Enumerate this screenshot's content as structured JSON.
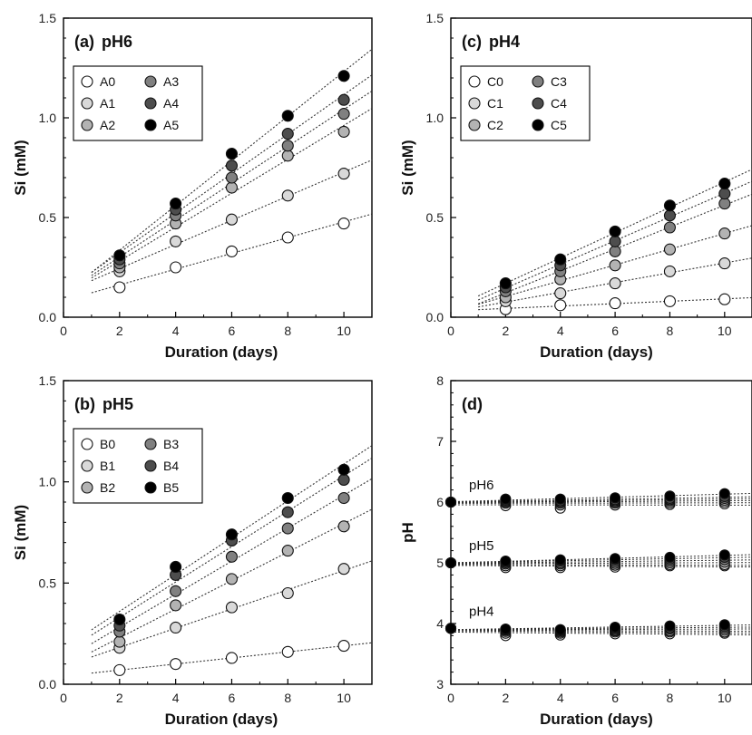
{
  "chart_data": [
    {
      "type": "scatter",
      "panel": "a",
      "title_prefix": "(a)",
      "title": "pH6",
      "xlabel": "Duration (days)",
      "ylabel": "Si (mM)",
      "xlim": [
        0,
        11
      ],
      "ylim": [
        0,
        1.5
      ],
      "x_ticks": [
        "0",
        "2",
        "4",
        "6",
        "8",
        "10"
      ],
      "y_ticks": [
        "0.0",
        "0.5",
        "1.0",
        "1.5"
      ],
      "legend_position": "top-left",
      "x": [
        2,
        4,
        6,
        8,
        10
      ],
      "series": [
        {
          "name": "A0",
          "values": [
            0.15,
            0.25,
            0.33,
            0.4,
            0.47
          ]
        },
        {
          "name": "A1",
          "values": [
            0.23,
            0.38,
            0.49,
            0.61,
            0.72
          ]
        },
        {
          "name": "A2",
          "values": [
            0.25,
            0.47,
            0.65,
            0.81,
            0.93
          ]
        },
        {
          "name": "A3",
          "values": [
            0.27,
            0.51,
            0.7,
            0.86,
            1.02
          ]
        },
        {
          "name": "A4",
          "values": [
            0.29,
            0.54,
            0.76,
            0.92,
            1.09
          ]
        },
        {
          "name": "A5",
          "values": [
            0.31,
            0.57,
            0.82,
            1.01,
            1.21
          ]
        }
      ]
    },
    {
      "type": "scatter",
      "panel": "b",
      "title_prefix": "(b)",
      "title": "pH5",
      "xlabel": "Duration (days)",
      "ylabel": "Si (mM)",
      "xlim": [
        0,
        11
      ],
      "ylim": [
        0,
        1.5
      ],
      "x_ticks": [
        "0",
        "2",
        "4",
        "6",
        "8",
        "10"
      ],
      "y_ticks": [
        "0.0",
        "0.5",
        "1.0",
        "1.5"
      ],
      "legend_position": "top-left",
      "x": [
        2,
        4,
        6,
        8,
        10
      ],
      "series": [
        {
          "name": "B0",
          "values": [
            0.07,
            0.1,
            0.13,
            0.16,
            0.19
          ]
        },
        {
          "name": "B1",
          "values": [
            0.18,
            0.28,
            0.38,
            0.45,
            0.57
          ]
        },
        {
          "name": "B2",
          "values": [
            0.21,
            0.39,
            0.52,
            0.66,
            0.78
          ]
        },
        {
          "name": "B3",
          "values": [
            0.26,
            0.46,
            0.63,
            0.77,
            0.92
          ]
        },
        {
          "name": "B4",
          "values": [
            0.29,
            0.54,
            0.71,
            0.85,
            1.01
          ]
        },
        {
          "name": "B5",
          "values": [
            0.32,
            0.58,
            0.74,
            0.92,
            1.06
          ]
        }
      ]
    },
    {
      "type": "scatter",
      "panel": "c",
      "title_prefix": "(c)",
      "title": "pH4",
      "xlabel": "Duration (days)",
      "ylabel": "Si (mM)",
      "xlim": [
        0,
        11
      ],
      "ylim": [
        0,
        1.5
      ],
      "x_ticks": [
        "0",
        "2",
        "4",
        "6",
        "8",
        "10"
      ],
      "y_ticks": [
        "0.0",
        "0.5",
        "1.0",
        "1.5"
      ],
      "legend_position": "top-left",
      "x": [
        2,
        4,
        6,
        8,
        10
      ],
      "series": [
        {
          "name": "C0",
          "values": [
            0.04,
            0.06,
            0.07,
            0.08,
            0.09
          ]
        },
        {
          "name": "C1",
          "values": [
            0.08,
            0.12,
            0.17,
            0.23,
            0.27
          ]
        },
        {
          "name": "C2",
          "values": [
            0.1,
            0.19,
            0.26,
            0.34,
            0.42
          ]
        },
        {
          "name": "C3",
          "values": [
            0.13,
            0.23,
            0.33,
            0.45,
            0.57
          ]
        },
        {
          "name": "C4",
          "values": [
            0.15,
            0.26,
            0.38,
            0.51,
            0.62
          ]
        },
        {
          "name": "C5",
          "values": [
            0.17,
            0.29,
            0.43,
            0.56,
            0.67
          ]
        }
      ]
    },
    {
      "type": "scatter",
      "panel": "d",
      "title_prefix": "(d)",
      "title": "",
      "xlabel": "Duration (days)",
      "ylabel": "pH",
      "xlim": [
        0,
        11
      ],
      "ylim": [
        3,
        8
      ],
      "x_ticks": [
        "0",
        "2",
        "4",
        "6",
        "8",
        "10"
      ],
      "y_ticks": [
        "3",
        "4",
        "5",
        "6",
        "7",
        "8"
      ],
      "x": [
        0,
        2,
        4,
        6,
        8,
        10
      ],
      "group_labels": [
        {
          "text": "pH6",
          "y": 6.15
        },
        {
          "text": "pH5",
          "y": 5.15
        },
        {
          "text": "pH4",
          "y": 4.07
        }
      ],
      "groups": [
        {
          "group": "pH6",
          "series": [
            {
              "values": [
                6.0,
                5.94,
                5.9,
                5.95,
                5.96,
                5.97
              ]
            },
            {
              "values": [
                6.0,
                5.98,
                5.95,
                5.98,
                5.99,
                6.0
              ]
            },
            {
              "values": [
                6.0,
                6.0,
                5.98,
                6.0,
                6.02,
                6.03
              ]
            },
            {
              "values": [
                6.0,
                6.01,
                6.0,
                6.02,
                6.04,
                6.06
              ]
            },
            {
              "values": [
                6.0,
                6.03,
                6.02,
                6.04,
                6.06,
                6.09
              ]
            },
            {
              "values": [
                6.0,
                6.05,
                6.05,
                6.07,
                6.1,
                6.14
              ]
            }
          ]
        },
        {
          "group": "pH5",
          "series": [
            {
              "values": [
                5.0,
                4.92,
                4.92,
                4.93,
                4.95,
                4.95
              ]
            },
            {
              "values": [
                5.0,
                4.95,
                4.95,
                4.96,
                4.97,
                4.97
              ]
            },
            {
              "values": [
                5.0,
                4.98,
                4.98,
                4.99,
                5.0,
                5.01
              ]
            },
            {
              "values": [
                5.0,
                5.0,
                5.0,
                5.02,
                5.03,
                5.05
              ]
            },
            {
              "values": [
                5.0,
                5.02,
                5.03,
                5.05,
                5.06,
                5.09
              ]
            },
            {
              "values": [
                5.0,
                5.03,
                5.05,
                5.07,
                5.09,
                5.13
              ]
            }
          ]
        },
        {
          "group": "pH4",
          "series": [
            {
              "values": [
                3.92,
                3.8,
                3.81,
                3.83,
                3.83,
                3.84
              ]
            },
            {
              "values": [
                3.92,
                3.84,
                3.84,
                3.86,
                3.86,
                3.86
              ]
            },
            {
              "values": [
                3.92,
                3.87,
                3.86,
                3.88,
                3.88,
                3.89
              ]
            },
            {
              "values": [
                3.92,
                3.89,
                3.88,
                3.9,
                3.91,
                3.92
              ]
            },
            {
              "values": [
                3.92,
                3.9,
                3.89,
                3.92,
                3.93,
                3.95
              ]
            },
            {
              "values": [
                3.92,
                3.91,
                3.9,
                3.94,
                3.96,
                3.98
              ]
            }
          ]
        }
      ]
    }
  ],
  "colors": {
    "series_fills": [
      "#ffffff",
      "#d9d9d9",
      "#b3b3b3",
      "#808080",
      "#4d4d4d",
      "#000000"
    ],
    "stroke": "#111111",
    "fit_line": "#333333"
  }
}
